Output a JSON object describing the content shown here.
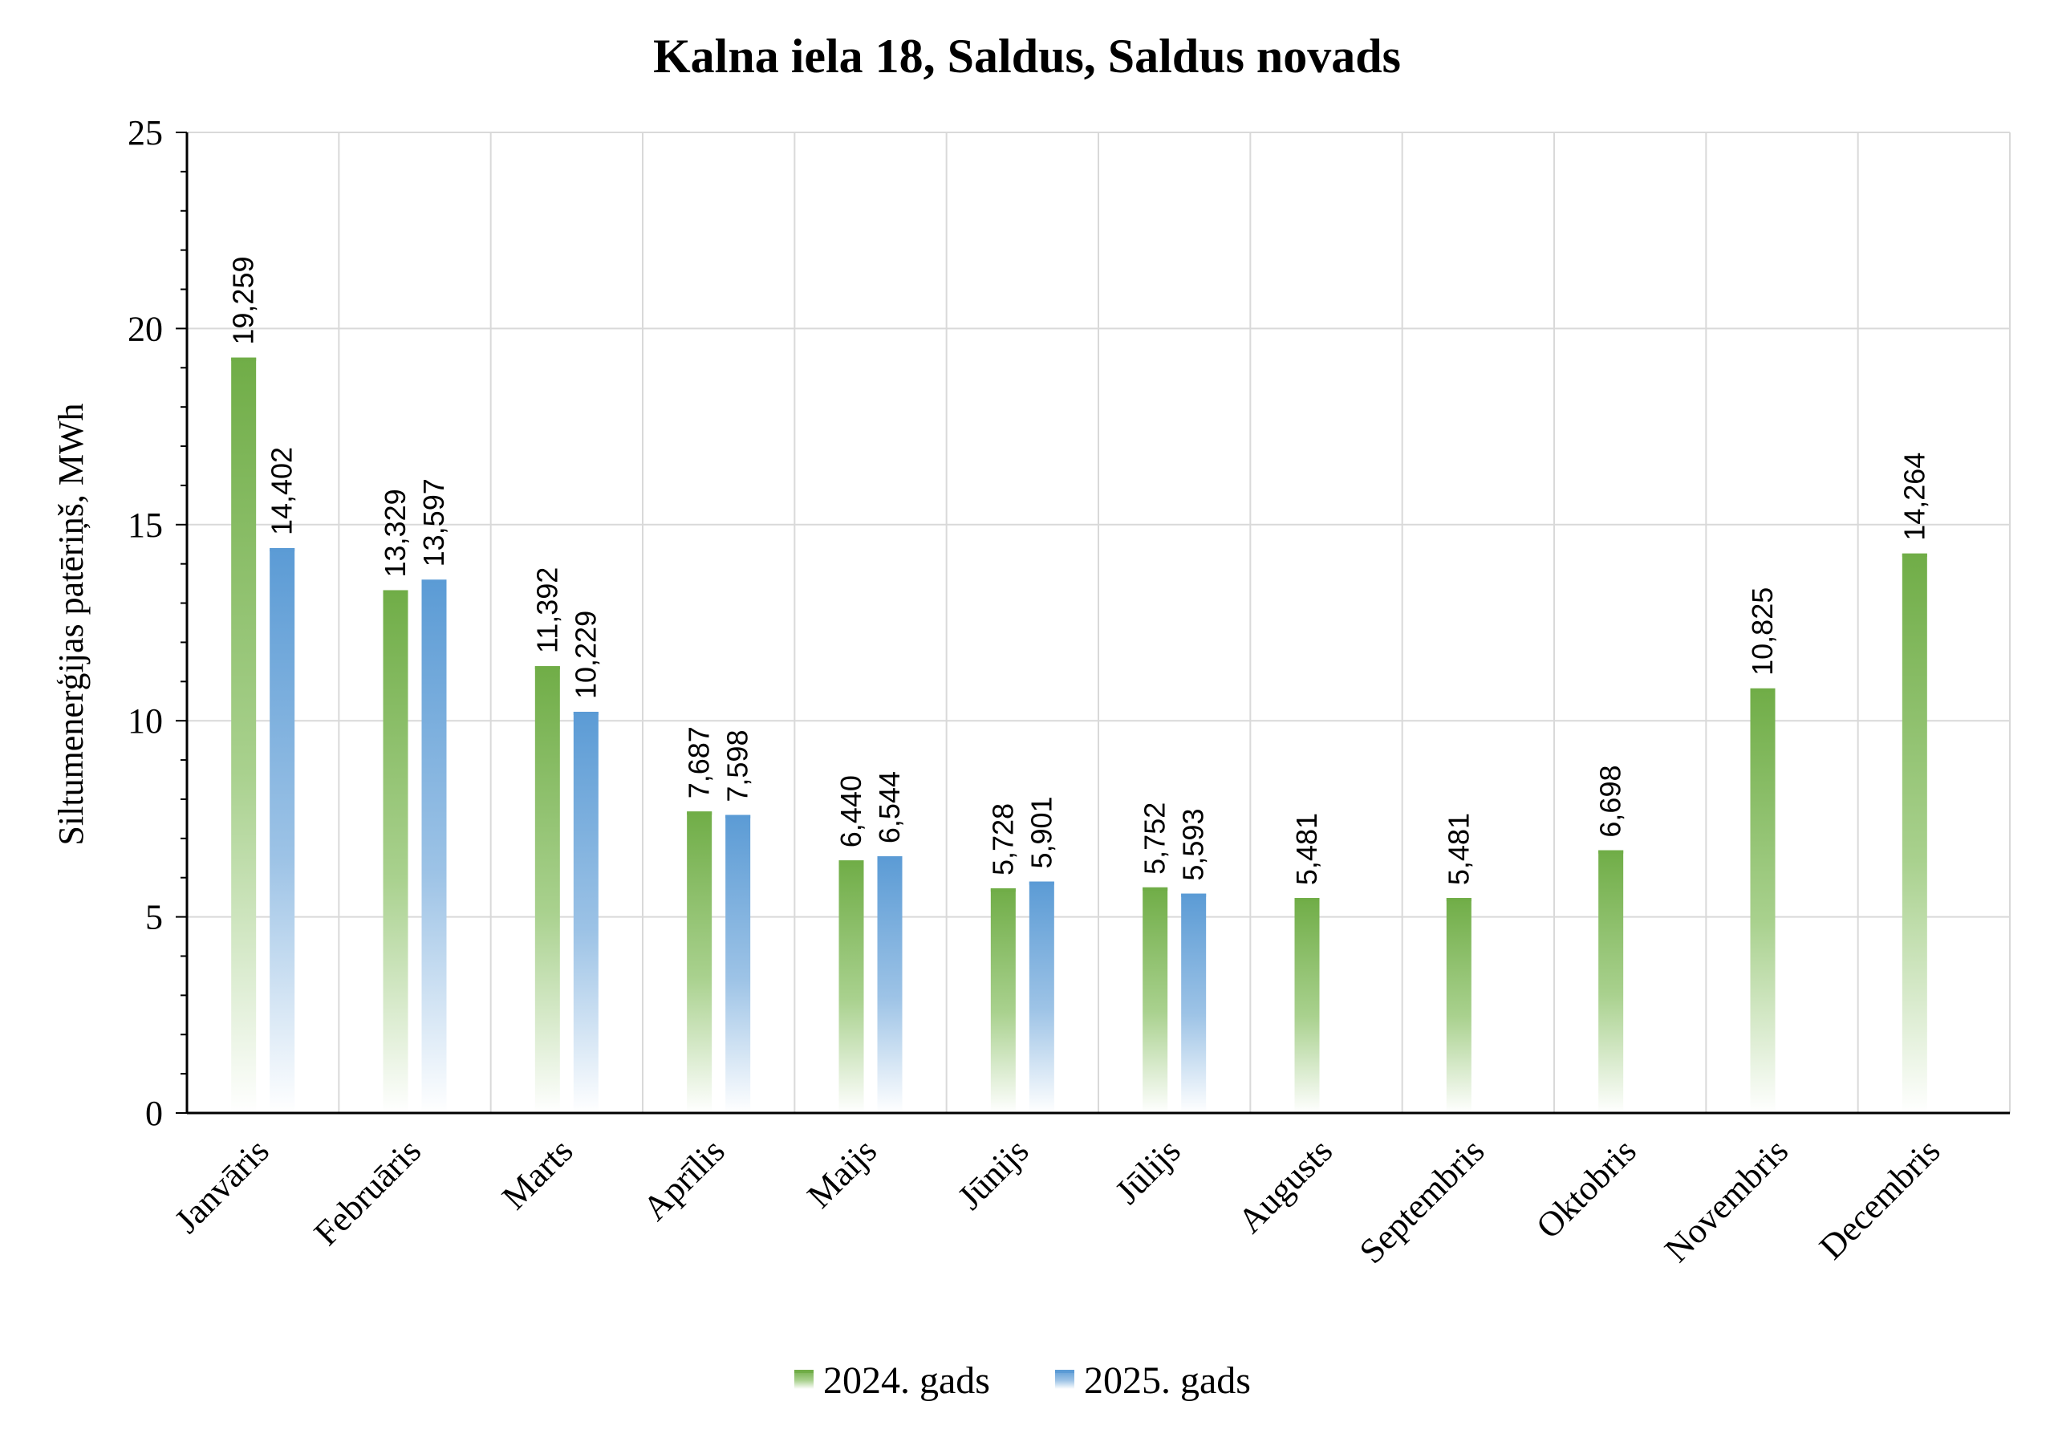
{
  "chart_data": {
    "type": "bar",
    "title": "Kalna iela 18, Saldus, Saldus novads",
    "xlabel": "",
    "ylabel": "Siltumenerģijas patēriņš, MWh",
    "ylim": [
      0,
      25
    ],
    "yticks": [
      "0",
      "5",
      "10",
      "15",
      "20",
      "25"
    ],
    "ytick_values": [
      0,
      5,
      10,
      15,
      20,
      25
    ],
    "grid": true,
    "legend_position": "bottom",
    "categories": [
      "Janvāris",
      "Februāris",
      "Marts",
      "Aprīlis",
      "Maijs",
      "Jūnijs",
      "Jūlijs",
      "Augusts",
      "Septembris",
      "Oktobris",
      "Novembris",
      "Decembris"
    ],
    "series": [
      {
        "name": "2024. gads",
        "color": "#70ad47",
        "values": [
          19.259,
          13.329,
          11.392,
          7.687,
          6.44,
          5.728,
          5.752,
          5.481,
          5.481,
          6.698,
          10.825,
          14.264
        ],
        "labels": [
          "19,259",
          "13,329",
          "11,392",
          "7,687",
          "6,440",
          "5,728",
          "5,752",
          "5,481",
          "5,481",
          "6,698",
          "10,825",
          "14,264"
        ]
      },
      {
        "name": "2025. gads",
        "color": "#5b9bd5",
        "values": [
          14.402,
          13.597,
          10.229,
          7.598,
          6.544,
          5.901,
          5.593,
          null,
          null,
          null,
          null,
          null
        ],
        "labels": [
          "14,402",
          "13,597",
          "10,229",
          "7,598",
          "6,544",
          "5,901",
          "5,593",
          "",
          "",
          "",
          "",
          ""
        ]
      }
    ]
  }
}
